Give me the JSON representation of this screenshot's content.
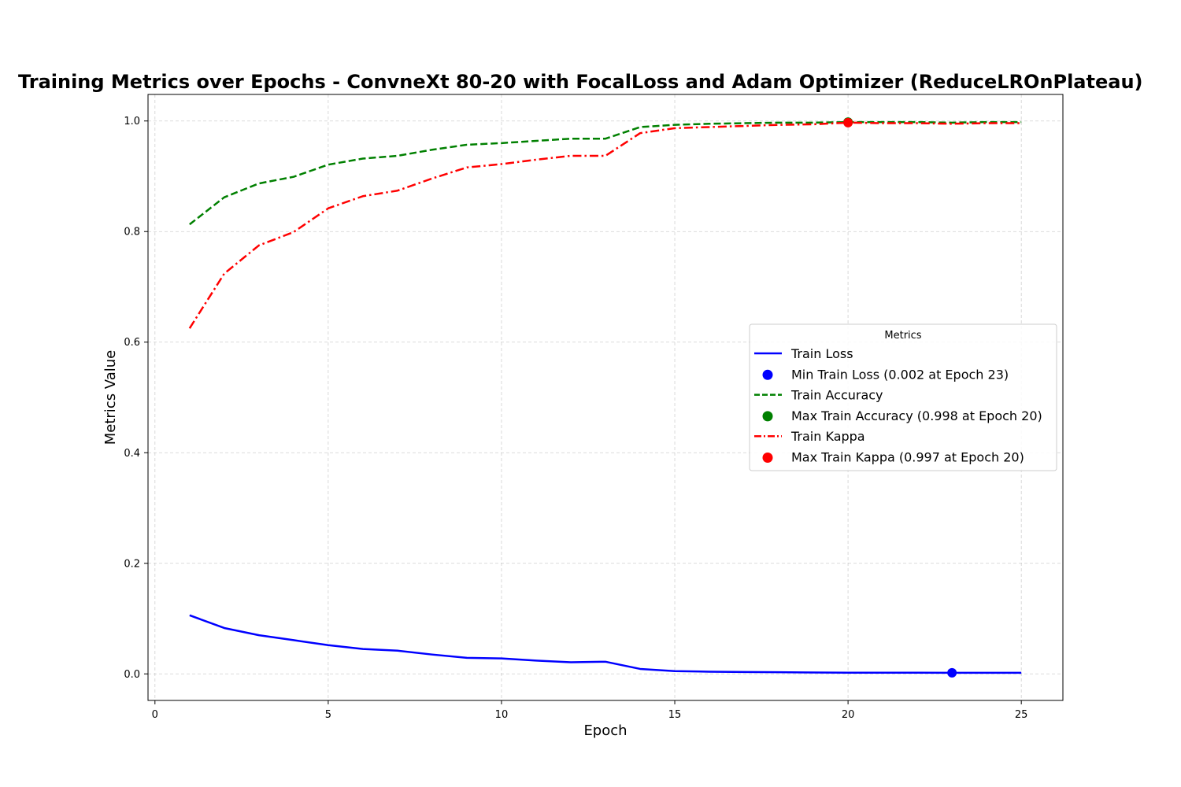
{
  "chart_data": {
    "type": "line",
    "title": "Training Metrics over Epochs - ConvneXt 80-20 with FocalLoss and Adam Optimizer (ReduceLROnPlateau)",
    "xlabel": "Epoch",
    "ylabel": "Metrics Value",
    "xlim": [
      -0.2,
      26.2
    ],
    "ylim": [
      -0.048,
      1.048
    ],
    "x_ticks": [
      0,
      5,
      10,
      15,
      20,
      25
    ],
    "y_ticks": [
      0.0,
      0.2,
      0.4,
      0.6,
      0.8,
      1.0
    ],
    "x_tick_labels": [
      "0",
      "5",
      "10",
      "15",
      "20",
      "25"
    ],
    "y_tick_labels": [
      "0.0",
      "0.2",
      "0.4",
      "0.6",
      "0.8",
      "1.0"
    ],
    "grid": true,
    "legend_title": "Metrics",
    "legend_position": "center-right",
    "x": [
      1,
      2,
      3,
      4,
      5,
      6,
      7,
      8,
      9,
      10,
      11,
      12,
      13,
      14,
      15,
      16,
      17,
      18,
      19,
      20,
      21,
      22,
      23,
      24,
      25
    ],
    "series": [
      {
        "name": "Train Loss",
        "color": "#0000ff",
        "style": "solid",
        "values": [
          0.106,
          0.083,
          0.07,
          0.061,
          0.052,
          0.045,
          0.042,
          0.035,
          0.029,
          0.028,
          0.024,
          0.021,
          0.022,
          0.009,
          0.005,
          0.004,
          0.0035,
          0.003,
          0.0025,
          0.0022,
          0.0022,
          0.0021,
          0.002,
          0.002,
          0.002
        ]
      },
      {
        "name": "Train Accuracy",
        "color": "#008000",
        "style": "dashed",
        "values": [
          0.813,
          0.862,
          0.887,
          0.899,
          0.921,
          0.932,
          0.937,
          0.948,
          0.957,
          0.96,
          0.964,
          0.968,
          0.968,
          0.989,
          0.993,
          0.995,
          0.996,
          0.997,
          0.997,
          0.998,
          0.998,
          0.998,
          0.997,
          0.998,
          0.998
        ]
      },
      {
        "name": "Train Kappa",
        "color": "#ff0000",
        "style": "dashdot",
        "values": [
          0.625,
          0.724,
          0.775,
          0.799,
          0.842,
          0.864,
          0.874,
          0.896,
          0.916,
          0.922,
          0.93,
          0.937,
          0.937,
          0.978,
          0.987,
          0.989,
          0.991,
          0.993,
          0.994,
          0.997,
          0.996,
          0.996,
          0.995,
          0.996,
          0.996
        ]
      }
    ],
    "markers": [
      {
        "name": "Min Train Loss (0.002 at Epoch 23)",
        "x": 23,
        "y": 0.002,
        "color": "#0000ff"
      },
      {
        "name": "Max Train Accuracy (0.998 at Epoch 20)",
        "x": 20,
        "y": 0.998,
        "color": "#008000"
      },
      {
        "name": "Max Train Kappa (0.997 at Epoch 20)",
        "x": 20,
        "y": 0.997,
        "color": "#ff0000"
      }
    ],
    "legend_entries": [
      {
        "label": "Train Loss",
        "kind": "line",
        "color": "#0000ff",
        "style": "solid"
      },
      {
        "label": "Min Train Loss (0.002 at Epoch 23)",
        "kind": "marker",
        "color": "#0000ff"
      },
      {
        "label": "Train Accuracy",
        "kind": "line",
        "color": "#008000",
        "style": "dashed"
      },
      {
        "label": "Max Train Accuracy (0.998 at Epoch 20)",
        "kind": "marker",
        "color": "#008000"
      },
      {
        "label": "Train Kappa",
        "kind": "line",
        "color": "#ff0000",
        "style": "dashdot"
      },
      {
        "label": "Max Train Kappa (0.997 at Epoch 20)",
        "kind": "marker",
        "color": "#ff0000"
      }
    ]
  }
}
